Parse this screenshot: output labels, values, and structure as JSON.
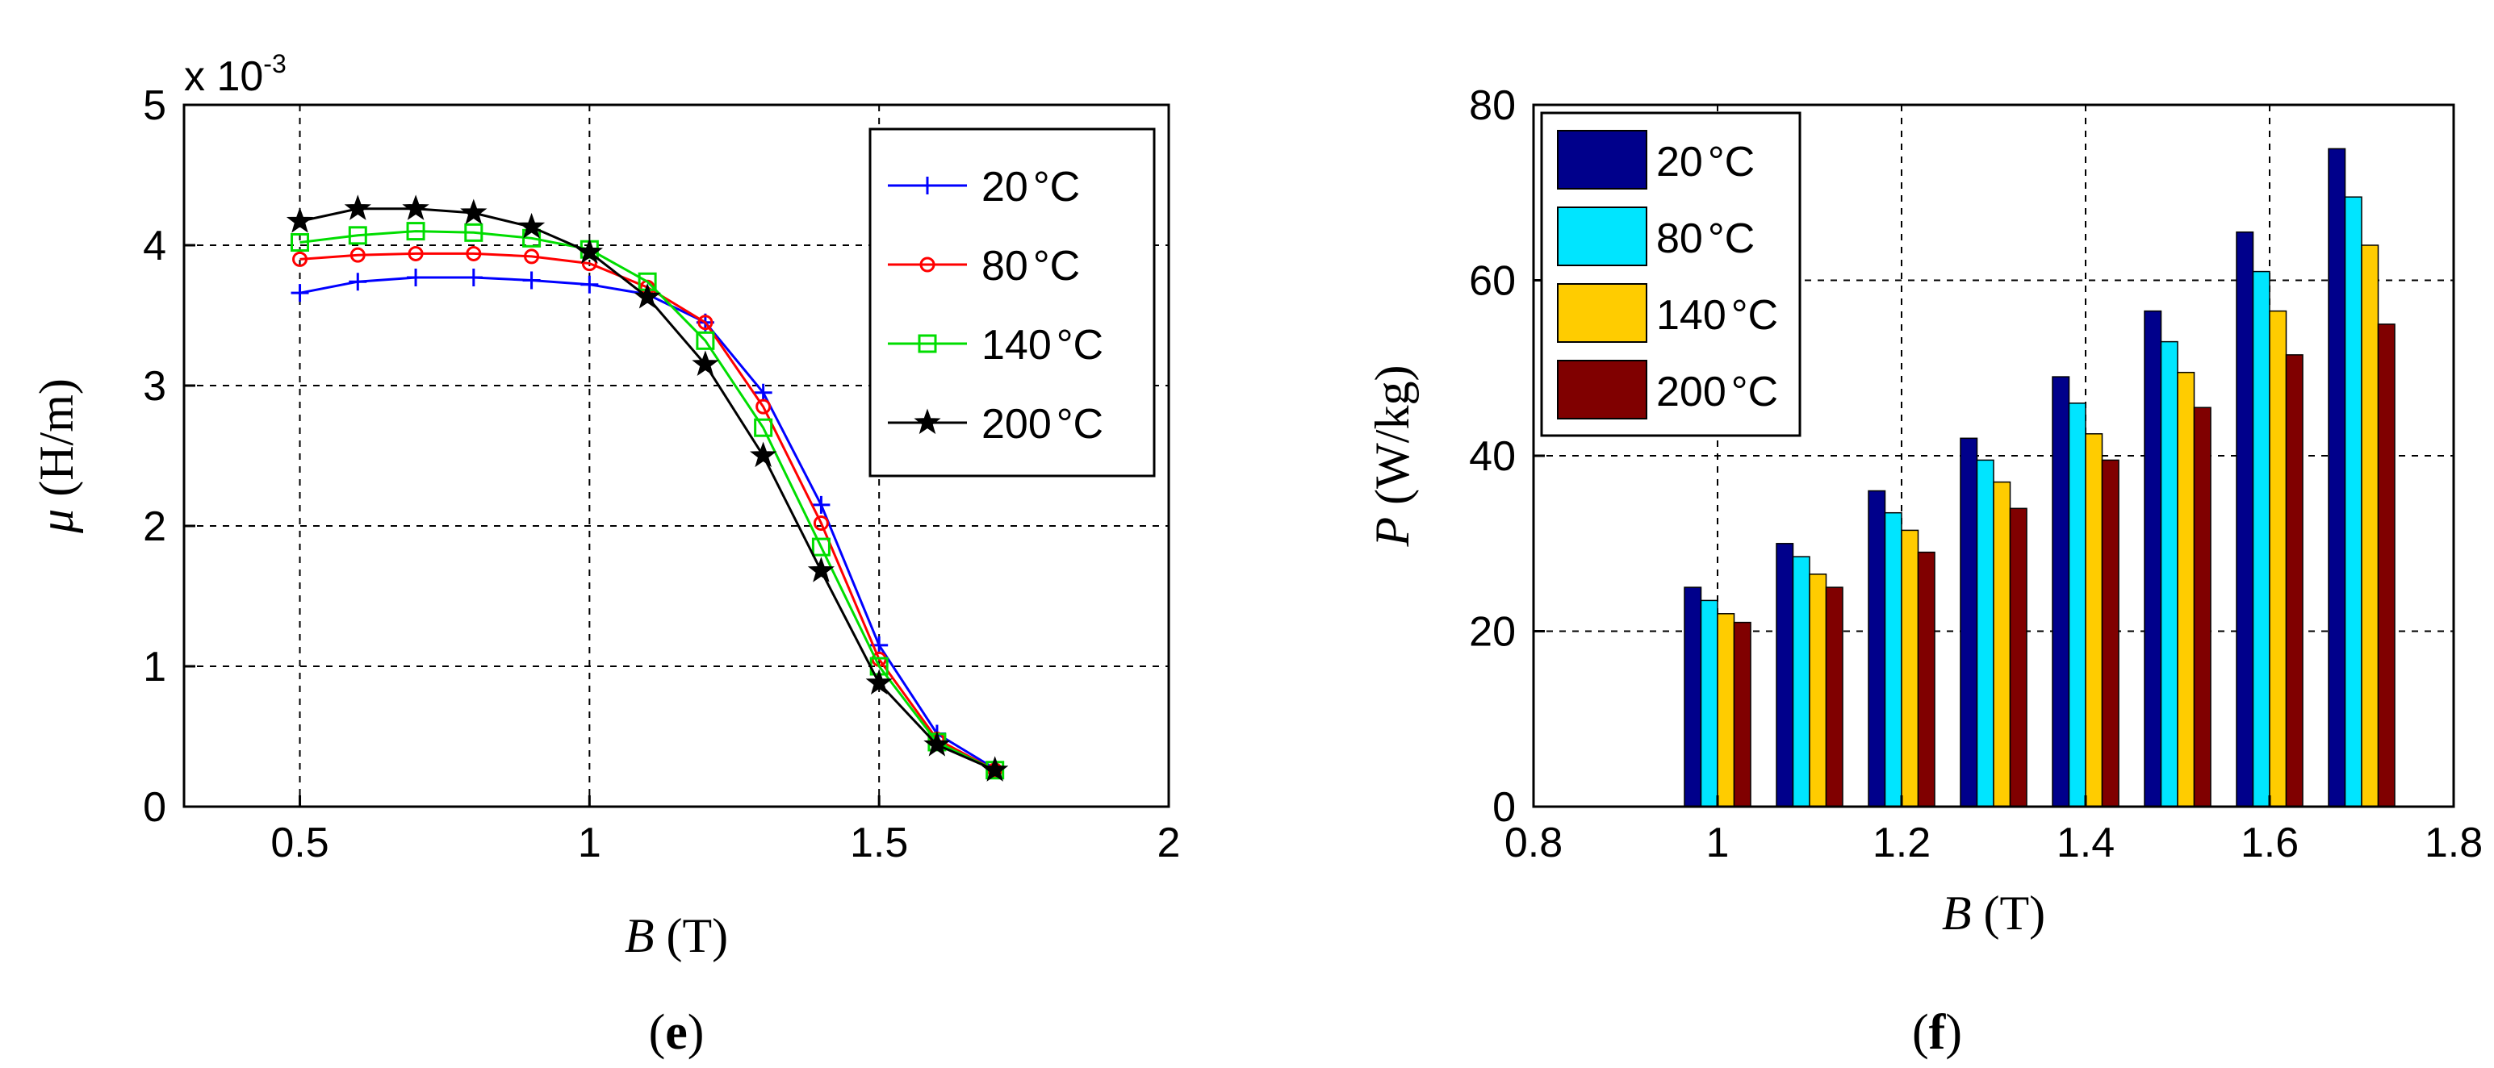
{
  "chart_data": [
    {
      "type": "line",
      "panel_label": "e",
      "xlabel_var": "B",
      "xlabel_unit": "(T)",
      "ylabel_var": "μ",
      "ylabel_unit": "(H/m)",
      "y_exponent_text": "x 10",
      "y_exponent_power": "-3",
      "xlim": [
        0.3,
        2.0
      ],
      "ylim": [
        0,
        5
      ],
      "xticks": [
        0.5,
        1,
        1.5,
        2
      ],
      "xtick_labels": [
        "0.5",
        "1",
        "1.5",
        "2"
      ],
      "yticks": [
        0,
        1,
        2,
        3,
        4,
        5
      ],
      "ytick_labels": [
        "0",
        "1",
        "2",
        "3",
        "4",
        "5"
      ],
      "grid": true,
      "legend_position": "top-right",
      "x": [
        0.5,
        0.6,
        0.7,
        0.8,
        0.9,
        1.0,
        1.1,
        1.2,
        1.3,
        1.4,
        1.5,
        1.6,
        1.7
      ],
      "series": [
        {
          "name": "20",
          "unit": "°C",
          "color": "#0000ff",
          "marker": "plus",
          "values": [
            3.66,
            3.74,
            3.77,
            3.77,
            3.75,
            3.72,
            3.65,
            3.45,
            2.95,
            2.15,
            1.15,
            0.52,
            0.27
          ]
        },
        {
          "name": "80",
          "unit": "°C",
          "color": "#ff0000",
          "marker": "circle",
          "values": [
            3.9,
            3.93,
            3.94,
            3.94,
            3.92,
            3.87,
            3.7,
            3.45,
            2.85,
            2.02,
            1.05,
            0.48,
            0.26
          ]
        },
        {
          "name": "140",
          "unit": "°C",
          "color": "#00dd00",
          "marker": "square",
          "values": [
            4.02,
            4.07,
            4.1,
            4.09,
            4.05,
            3.97,
            3.74,
            3.32,
            2.7,
            1.85,
            1.0,
            0.46,
            0.26
          ]
        },
        {
          "name": "200",
          "unit": "°C",
          "color": "#000000",
          "marker": "star",
          "values": [
            4.17,
            4.26,
            4.26,
            4.23,
            4.13,
            3.95,
            3.63,
            3.15,
            2.5,
            1.68,
            0.88,
            0.44,
            0.26
          ]
        }
      ]
    },
    {
      "type": "bar",
      "panel_label": "f",
      "xlabel_var": "B",
      "xlabel_unit": "(T)",
      "ylabel_var": "P",
      "ylabel_unit": "(W/kg)",
      "xlim": [
        0.8,
        1.8
      ],
      "ylim": [
        0,
        80
      ],
      "xticks": [
        0.8,
        1.0,
        1.2,
        1.4,
        1.6,
        1.8
      ],
      "xtick_labels": [
        "0.8",
        "1",
        "1.2",
        "1.4",
        "1.6",
        "1.8"
      ],
      "yticks": [
        0,
        20,
        40,
        60,
        80
      ],
      "ytick_labels": [
        "0",
        "20",
        "40",
        "60",
        "80"
      ],
      "grid": true,
      "legend_position": "top-left",
      "x": [
        1.0,
        1.1,
        1.2,
        1.3,
        1.4,
        1.5,
        1.6,
        1.7
      ],
      "series": [
        {
          "name": "20",
          "unit": "°C",
          "color": "#00008b",
          "values": [
            25,
            30,
            36,
            42,
            49,
            56.5,
            65.5,
            75
          ]
        },
        {
          "name": "80",
          "unit": "°C",
          "color": "#00e5ff",
          "values": [
            23.5,
            28.5,
            33.5,
            39.5,
            46,
            53,
            61,
            69.5
          ]
        },
        {
          "name": "140",
          "unit": "°C",
          "color": "#ffcc00",
          "values": [
            22,
            26.5,
            31.5,
            37,
            42.5,
            49.5,
            56.5,
            64
          ]
        },
        {
          "name": "200",
          "unit": "°C",
          "color": "#800000",
          "values": [
            21,
            25,
            29,
            34,
            39.5,
            45.5,
            51.5,
            55
          ]
        }
      ]
    }
  ]
}
